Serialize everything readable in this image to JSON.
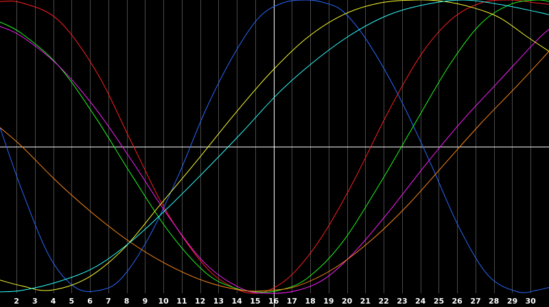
{
  "chart_data": {
    "type": "line",
    "title": "",
    "xlabel": "",
    "ylabel": "",
    "background": "#000000",
    "grid": true,
    "grid_color": "#4a4a4a",
    "axis_color": "#ffffff",
    "xlim": [
      1.1,
      31.0
    ],
    "ylim": [
      -1.0,
      1.0
    ],
    "x_ticks": [
      2,
      3,
      4,
      5,
      6,
      7,
      8,
      9,
      10,
      11,
      12,
      13,
      14,
      15,
      16,
      17,
      18,
      19,
      20,
      21,
      22,
      23,
      24,
      25,
      26,
      27,
      28,
      29,
      30
    ],
    "crosshair": {
      "x": 16,
      "y": 0
    },
    "series": [
      {
        "color": "#ff2020",
        "x": [
          1.1,
          2.3,
          4.3,
          6.4,
          8.3,
          10.2,
          12.3,
          13.8,
          14.9,
          15.9,
          17.1,
          18.6,
          20.3,
          22.3,
          24.1,
          25.7,
          27.3,
          28.9,
          30.3,
          31.0
        ],
        "y": [
          0.99,
          0.98,
          0.86,
          0.5,
          0.02,
          -0.45,
          -0.82,
          -0.96,
          -1.0,
          -0.97,
          -0.86,
          -0.62,
          -0.25,
          0.25,
          0.64,
          0.87,
          0.98,
          1.0,
          0.98,
          0.97
        ]
      },
      {
        "color": "#2a6aff",
        "x": [
          1.1,
          2.3,
          3.8,
          5.2,
          6.5,
          7.7,
          9.2,
          10.8,
          12.3,
          13.8,
          15.2,
          16.5,
          17.8,
          18.8,
          19.8,
          21.1,
          22.8,
          24.5,
          26.1,
          27.7,
          29.3,
          30.3,
          31.0
        ],
        "y": [
          0.13,
          -0.3,
          -0.75,
          -0.96,
          -0.98,
          -0.9,
          -0.62,
          -0.2,
          0.25,
          0.62,
          0.88,
          0.98,
          1.0,
          0.98,
          0.92,
          0.72,
          0.35,
          -0.1,
          -0.55,
          -0.88,
          -0.99,
          -0.98,
          -0.96
        ]
      },
      {
        "color": "#20ff20",
        "x": [
          1.1,
          2.3,
          4.3,
          6.3,
          8.3,
          10.3,
          12.3,
          13.8,
          15.1,
          16.3,
          17.8,
          19.7,
          21.8,
          23.8,
          25.6,
          27.3,
          28.9,
          30.3,
          31.0
        ],
        "y": [
          0.85,
          0.77,
          0.55,
          0.2,
          -0.2,
          -0.58,
          -0.86,
          -0.96,
          -0.99,
          -0.98,
          -0.9,
          -0.66,
          -0.25,
          0.18,
          0.56,
          0.84,
          0.97,
          1.0,
          0.99
        ]
      },
      {
        "color": "#ff20ff",
        "x": [
          1.1,
          2.3,
          4.3,
          6.3,
          8.3,
          10.3,
          12.3,
          14.3,
          15.8,
          17.3,
          18.8,
          20.4,
          22.3,
          24.3,
          26.3,
          28.3,
          30.3,
          31.0
        ],
        "y": [
          0.82,
          0.75,
          0.55,
          0.26,
          -0.1,
          -0.48,
          -0.8,
          -0.97,
          -1.0,
          -0.98,
          -0.9,
          -0.72,
          -0.44,
          -0.12,
          0.18,
          0.45,
          0.72,
          0.8
        ]
      },
      {
        "color": "#ff8a1a",
        "x": [
          1.1,
          2.3,
          4.3,
          6.3,
          8.3,
          10.3,
          12.3,
          14.3,
          15.8,
          17.3,
          19.3,
          21.3,
          23.3,
          25.3,
          27.3,
          29.3,
          31.0
        ],
        "y": [
          0.13,
          0.0,
          -0.25,
          -0.47,
          -0.66,
          -0.81,
          -0.92,
          -0.98,
          -0.98,
          -0.95,
          -0.83,
          -0.64,
          -0.4,
          -0.12,
          0.16,
          0.42,
          0.65
        ]
      },
      {
        "color": "#ffff30",
        "x": [
          1.1,
          2.3,
          3.8,
          5.8,
          7.8,
          9.8,
          11.8,
          13.8,
          15.8,
          17.8,
          19.8,
          21.8,
          23.8,
          25.3,
          26.8,
          28.3,
          29.8,
          31.0
        ],
        "y": [
          -0.91,
          -0.95,
          -0.98,
          -0.9,
          -0.7,
          -0.4,
          -0.1,
          0.21,
          0.5,
          0.74,
          0.9,
          0.98,
          1.0,
          0.99,
          0.95,
          0.88,
          0.75,
          0.65
        ]
      },
      {
        "color": "#30ffff",
        "x": [
          1.1,
          2.3,
          4.3,
          6.3,
          8.3,
          10.3,
          12.3,
          14.3,
          16.3,
          18.3,
          20.3,
          22.3,
          24.3,
          26.3,
          28.3,
          30.3,
          31.0
        ],
        "y": [
          -0.99,
          -0.98,
          -0.92,
          -0.82,
          -0.64,
          -0.41,
          -0.16,
          0.1,
          0.37,
          0.59,
          0.77,
          0.9,
          0.97,
          1.0,
          0.97,
          0.92,
          0.9
        ]
      }
    ]
  }
}
